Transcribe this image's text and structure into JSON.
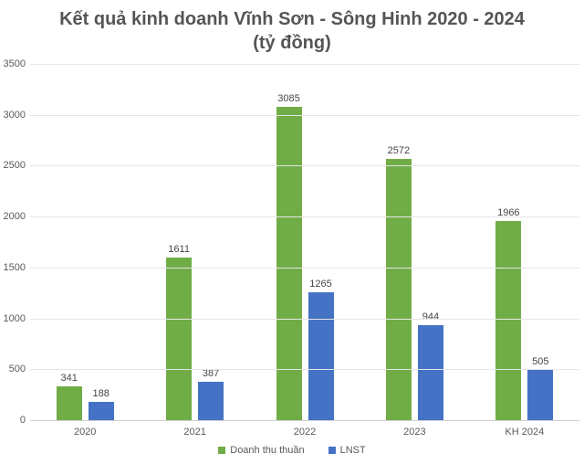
{
  "title": "Kết quả kinh doanh Vĩnh Sơn - Sông Hinh 2020 - 2024",
  "subtitle": "(tỷ đồng)",
  "chart_data": {
    "type": "bar",
    "title": "Kết quả kinh doanh Vĩnh Sơn - Sông Hinh 2020 - 2024 (tỷ đồng)",
    "categories": [
      "2020",
      "2021",
      "2022",
      "2023",
      "KH 2024"
    ],
    "series": [
      {
        "name": "Doanh thu thuần",
        "color": "#70AD47",
        "values": [
          341,
          1611,
          3085,
          2572,
          1966
        ]
      },
      {
        "name": "LNST",
        "color": "#4472C4",
        "values": [
          188,
          387,
          1265,
          944,
          505
        ]
      }
    ],
    "xlabel": "",
    "ylabel": "",
    "ylim": [
      0,
      3500
    ],
    "yticks": [
      0,
      500,
      1000,
      1500,
      2000,
      2500,
      3000,
      3500
    ],
    "grid": true,
    "data_labels": true,
    "legend_position": "bottom"
  },
  "colors": {
    "title_text": "#555555",
    "axis_text": "#595959",
    "gridline": "#e6e6e6",
    "background": "#ffffff"
  }
}
